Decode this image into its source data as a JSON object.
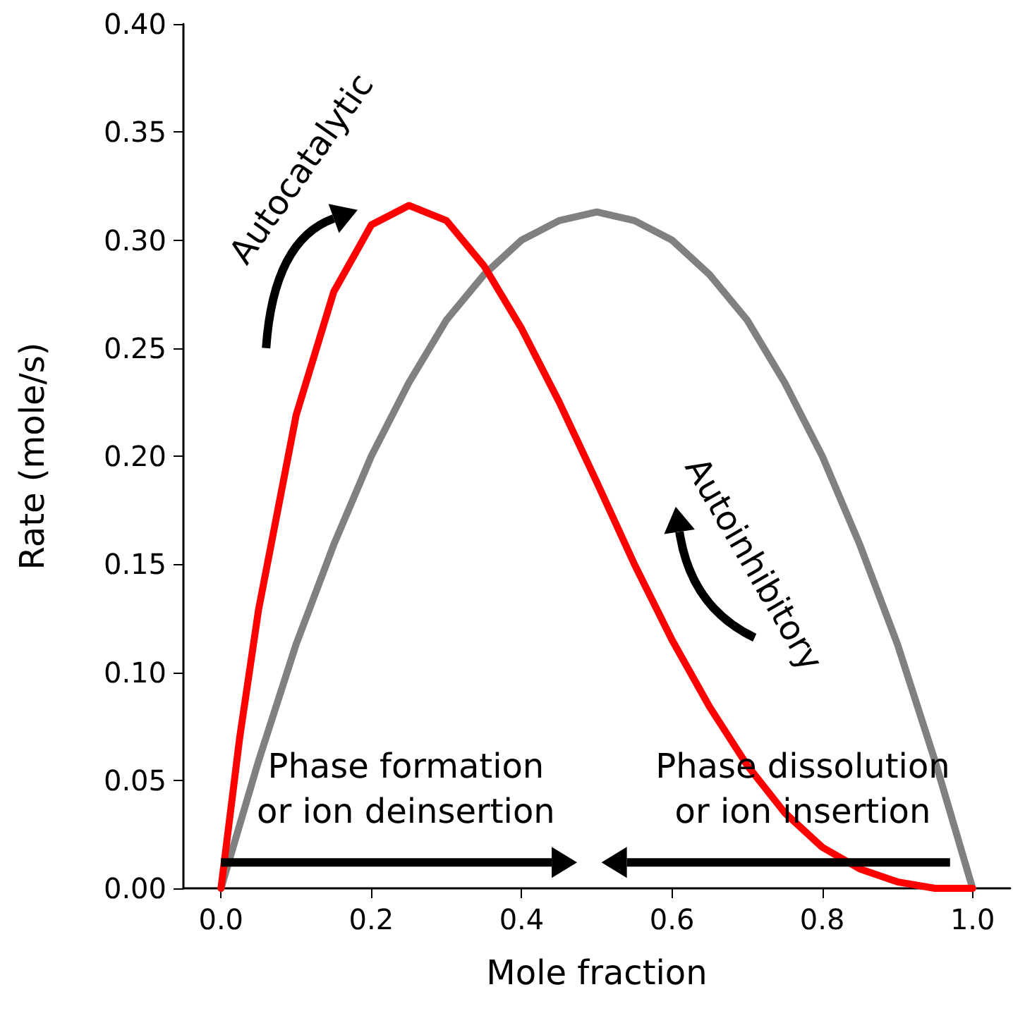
{
  "chart_data": {
    "type": "line",
    "xlabel": "Mole fraction",
    "ylabel": "Rate (mole/s)",
    "xlim": [
      -0.05,
      1.05
    ],
    "xticks": [
      {
        "value": 0,
        "label": "0.0"
      },
      0.2,
      0.4,
      0.6,
      0.8,
      {
        "value": 1,
        "label": "1.0"
      }
    ],
    "ylim": [
      0,
      0.4
    ],
    "yticks": [
      {
        "value": 0,
        "label": "0.00"
      },
      0.05,
      {
        "value": 0.1,
        "label": "0.10"
      },
      0.15,
      {
        "value": 0.2,
        "label": "0.20"
      },
      0.25,
      {
        "value": 0.3,
        "label": "0.30"
      },
      0.35,
      {
        "value": 0.4,
        "label": "0.40"
      }
    ],
    "grid": false,
    "marker": "none",
    "line_style": "solid",
    "series": [
      {
        "color": "#808080",
        "x": [
          0,
          0.05,
          0.1,
          0.15,
          0.2,
          0.25,
          0.3,
          0.35,
          0.4,
          0.45,
          0.5,
          0.55,
          0.6,
          0.65,
          0.7,
          0.75,
          0.8,
          0.85,
          0.9,
          0.95,
          1
        ],
        "values": [
          0,
          0.059,
          0.113,
          0.159,
          0.2,
          0.234,
          0.263,
          0.284,
          0.3,
          0.309,
          0.313,
          0.309,
          0.3,
          0.284,
          0.263,
          0.234,
          0.2,
          0.159,
          0.113,
          0.059,
          0
        ]
      },
      {
        "color": "#ff0000",
        "x": [
          0,
          0.025,
          0.05,
          0.1,
          0.15,
          0.2,
          0.25,
          0.3,
          0.35,
          0.4,
          0.45,
          0.5,
          0.55,
          0.6,
          0.65,
          0.7,
          0.75,
          0.8,
          0.85,
          0.9,
          0.95,
          1
        ],
        "values": [
          0,
          0.07,
          0.129,
          0.219,
          0.276,
          0.307,
          0.316,
          0.309,
          0.288,
          0.259,
          0.225,
          0.188,
          0.15,
          0.115,
          0.084,
          0.057,
          0.035,
          0.019,
          0.009,
          0.003,
          0,
          0
        ]
      }
    ],
    "annotations": [
      "Autocatalytic",
      "Autoinhibitory",
      "Phase formation\nor ion deinsertion",
      "Phase dissolution\nor ion insertion"
    ]
  }
}
